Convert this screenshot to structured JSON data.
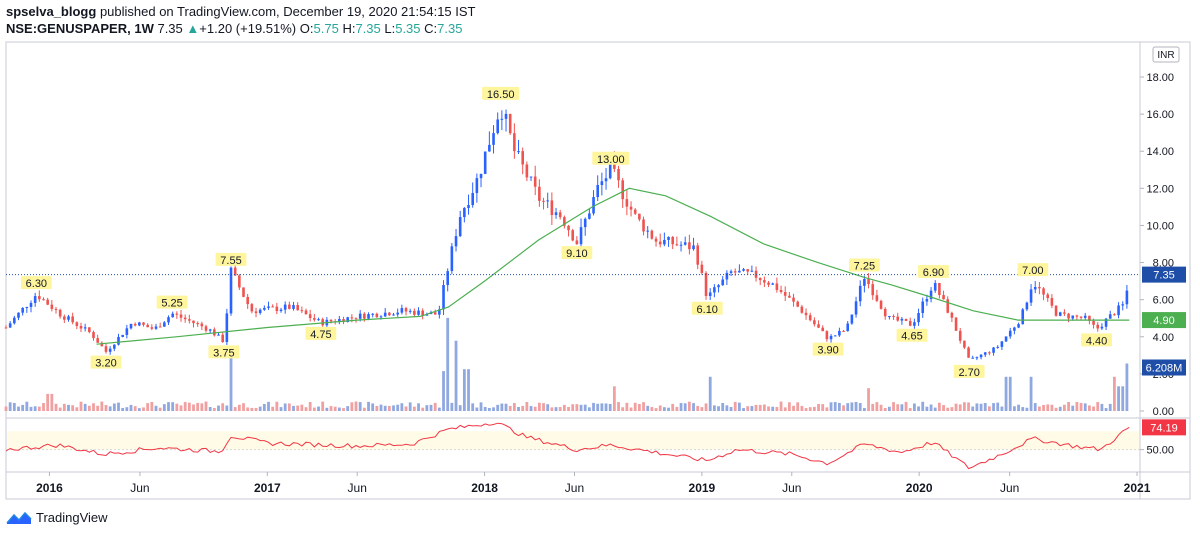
{
  "header": {
    "author": "spselva_blogg",
    "published": "published on TradingView.com, December 19, 2020 21:54:15 IST",
    "symbol": "NSE:GENUSPAPER, 1W",
    "last": "7.35",
    "change": "+1.20 (+19.51%)",
    "o_label": "O:",
    "o_value": "5.75",
    "h_label": "H:",
    "h_value": "7.35",
    "l_label": "L:",
    "l_value": "5.35",
    "c_label": "C:",
    "c_value": "7.35"
  },
  "footer": {
    "brand": "TradingView"
  },
  "colors": {
    "up": "#26a69a",
    "down": "#ef5350",
    "candle_up": "#2962ff",
    "candle_down": "#ef5350",
    "ma": "#4caf50",
    "rsi": "#f23645",
    "label_bg": "#fff59d",
    "last_price": "#1e4ea8"
  },
  "chart_data": {
    "type": "candlestick",
    "currency": "INR",
    "price_axis_ticks": [
      "18.00",
      "16.00",
      "14.00",
      "12.00",
      "10.00",
      "8.00",
      "6.00",
      "4.00",
      "2.00",
      "0.00"
    ],
    "price_ylim": [
      0,
      19
    ],
    "time_axis_ticks": [
      "2016",
      "Jun",
      "2017",
      "Jun",
      "2018",
      "Jun",
      "2019",
      "Jun",
      "2020",
      "Jun",
      "2021"
    ],
    "time_axis_dates": [
      "2016-01-01",
      "2016-06-01",
      "2017-01-01",
      "2017-06-01",
      "2018-01-01",
      "2018-06-01",
      "2019-01-01",
      "2019-06-01",
      "2020-01-01",
      "2020-06-01",
      "2021-01-01"
    ],
    "x_range": [
      "2015-10-20",
      "2021-01-06"
    ],
    "last_price": "7.35",
    "ma_value": "4.90",
    "volume_value": "6.208M",
    "rsi_value": "74.19",
    "rsi_axis_tick": "50.00",
    "price_path": [
      [
        "2015-10-20",
        4.5
      ],
      [
        "2015-12-10",
        6.3
      ],
      [
        "2016-01-20",
        5.2
      ],
      [
        "2016-03-10",
        4.2
      ],
      [
        "2016-04-05",
        3.2
      ],
      [
        "2016-05-20",
        4.8
      ],
      [
        "2016-06-25",
        4.4
      ],
      [
        "2016-07-25",
        5.25
      ],
      [
        "2016-09-25",
        4.4
      ],
      [
        "2016-10-20",
        3.75
      ],
      [
        "2016-11-01",
        7.55
      ],
      [
        "2016-12-05",
        5.4
      ],
      [
        "2017-02-10",
        5.6
      ],
      [
        "2017-04-01",
        4.75
      ],
      [
        "2017-06-01",
        5.1
      ],
      [
        "2017-08-15",
        5.4
      ],
      [
        "2017-10-15",
        5.2
      ],
      [
        "2017-11-01",
        7.8
      ],
      [
        "2017-11-20",
        10.5
      ],
      [
        "2017-12-20",
        12.5
      ],
      [
        "2018-01-28",
        16.5
      ],
      [
        "2018-02-20",
        14.0
      ],
      [
        "2018-04-01",
        11.5
      ],
      [
        "2018-05-10",
        10.5
      ],
      [
        "2018-06-05",
        9.1
      ],
      [
        "2018-07-10",
        12.0
      ],
      [
        "2018-08-01",
        13.0
      ],
      [
        "2018-09-10",
        10.5
      ],
      [
        "2018-10-15",
        9.2
      ],
      [
        "2018-11-20",
        9.0
      ],
      [
        "2018-12-20",
        8.8
      ],
      [
        "2019-01-10",
        6.1
      ],
      [
        "2019-02-20",
        7.5
      ],
      [
        "2019-04-01",
        7.3
      ],
      [
        "2019-05-01",
        6.8
      ],
      [
        "2019-06-15",
        5.5
      ],
      [
        "2019-08-01",
        3.9
      ],
      [
        "2019-09-01",
        4.4
      ],
      [
        "2019-10-01",
        7.25
      ],
      [
        "2019-11-10",
        5.0
      ],
      [
        "2019-12-20",
        4.65
      ],
      [
        "2020-01-25",
        6.9
      ],
      [
        "2020-02-20",
        5.3
      ],
      [
        "2020-03-25",
        2.7
      ],
      [
        "2020-05-10",
        3.4
      ],
      [
        "2020-06-20",
        5.0
      ],
      [
        "2020-07-10",
        7.0
      ],
      [
        "2020-08-20",
        5.2
      ],
      [
        "2020-10-05",
        5.0
      ],
      [
        "2020-10-25",
        4.4
      ],
      [
        "2020-11-20",
        5.2
      ],
      [
        "2020-12-12",
        5.8
      ],
      [
        "2020-12-19",
        7.35
      ]
    ],
    "ma_path": [
      [
        "2016-03-20",
        3.6
      ],
      [
        "2016-08-01",
        4.0
      ],
      [
        "2017-01-01",
        4.5
      ],
      [
        "2017-06-01",
        4.9
      ],
      [
        "2017-09-15",
        5.1
      ],
      [
        "2017-11-01",
        5.6
      ],
      [
        "2018-01-01",
        7.0
      ],
      [
        "2018-04-01",
        9.2
      ],
      [
        "2018-07-01",
        11.0
      ],
      [
        "2018-09-01",
        12.0
      ],
      [
        "2018-11-01",
        11.6
      ],
      [
        "2019-01-15",
        10.5
      ],
      [
        "2019-04-15",
        9.0
      ],
      [
        "2019-07-15",
        8.0
      ],
      [
        "2019-10-01",
        7.2
      ],
      [
        "2019-11-15",
        6.8
      ],
      [
        "2020-01-15",
        6.2
      ],
      [
        "2020-04-01",
        5.4
      ],
      [
        "2020-06-15",
        4.9
      ],
      [
        "2020-09-01",
        4.9
      ],
      [
        "2020-12-19",
        4.9
      ]
    ],
    "volume_spikes": [
      [
        "2016-01-01",
        0.9
      ],
      [
        "2016-11-01",
        2.9
      ],
      [
        "2017-10-25",
        2.1
      ],
      [
        "2017-11-01",
        4.9
      ],
      [
        "2017-11-15",
        3.7
      ],
      [
        "2017-12-01",
        2.2
      ],
      [
        "2018-08-05",
        1.3
      ],
      [
        "2019-01-15",
        1.8
      ],
      [
        "2019-10-10",
        1.2
      ],
      [
        "2020-05-30",
        1.8
      ],
      [
        "2020-07-05",
        1.8
      ],
      [
        "2020-11-25",
        1.8
      ],
      [
        "2020-12-05",
        1.3
      ],
      [
        "2020-12-19",
        2.5
      ]
    ],
    "rsi_path": [
      [
        "2015-10-20",
        50
      ],
      [
        "2016-01-15",
        55
      ],
      [
        "2016-04-01",
        45
      ],
      [
        "2016-07-01",
        52
      ],
      [
        "2016-10-15",
        48
      ],
      [
        "2016-11-01",
        65
      ],
      [
        "2017-01-01",
        57
      ],
      [
        "2017-06-01",
        54
      ],
      [
        "2017-09-01",
        56
      ],
      [
        "2017-11-01",
        72
      ],
      [
        "2018-01-20",
        80
      ],
      [
        "2018-03-10",
        64
      ],
      [
        "2018-06-05",
        50
      ],
      [
        "2018-08-01",
        55
      ],
      [
        "2018-12-01",
        42
      ],
      [
        "2019-01-10",
        38
      ],
      [
        "2019-03-01",
        50
      ],
      [
        "2019-06-01",
        45
      ],
      [
        "2019-08-01",
        35
      ],
      [
        "2019-10-01",
        56
      ],
      [
        "2019-12-01",
        47
      ],
      [
        "2020-01-25",
        58
      ],
      [
        "2020-03-25",
        30
      ],
      [
        "2020-05-15",
        44
      ],
      [
        "2020-07-10",
        62
      ],
      [
        "2020-09-15",
        54
      ],
      [
        "2020-11-01",
        50
      ],
      [
        "2020-12-19",
        74.19
      ]
    ],
    "price_labels": [
      {
        "date": "2015-12-10",
        "price": 6.3,
        "text": "6.30",
        "pos": "above"
      },
      {
        "date": "2016-04-05",
        "price": 3.2,
        "text": "3.20",
        "pos": "below"
      },
      {
        "date": "2016-07-25",
        "price": 5.25,
        "text": "5.25",
        "pos": "above"
      },
      {
        "date": "2016-10-20",
        "price": 3.75,
        "text": "3.75",
        "pos": "below"
      },
      {
        "date": "2016-11-01",
        "price": 7.55,
        "text": "7.55",
        "pos": "above"
      },
      {
        "date": "2017-04-01",
        "price": 4.75,
        "text": "4.75",
        "pos": "below"
      },
      {
        "date": "2018-01-28",
        "price": 16.5,
        "text": "16.50",
        "pos": "above"
      },
      {
        "date": "2018-06-05",
        "price": 9.1,
        "text": "9.10",
        "pos": "below"
      },
      {
        "date": "2018-08-01",
        "price": 13.0,
        "text": "13.00",
        "pos": "above"
      },
      {
        "date": "2019-01-10",
        "price": 6.1,
        "text": "6.10",
        "pos": "below"
      },
      {
        "date": "2019-08-01",
        "price": 3.9,
        "text": "3.90",
        "pos": "below"
      },
      {
        "date": "2019-10-01",
        "price": 7.25,
        "text": "7.25",
        "pos": "above"
      },
      {
        "date": "2019-12-20",
        "price": 4.65,
        "text": "4.65",
        "pos": "below"
      },
      {
        "date": "2020-01-25",
        "price": 6.9,
        "text": "6.90",
        "pos": "above"
      },
      {
        "date": "2020-03-25",
        "price": 2.7,
        "text": "2.70",
        "pos": "below"
      },
      {
        "date": "2020-07-10",
        "price": 7.0,
        "text": "7.00",
        "pos": "above"
      },
      {
        "date": "2020-10-25",
        "price": 4.4,
        "text": "4.40",
        "pos": "below"
      }
    ]
  }
}
